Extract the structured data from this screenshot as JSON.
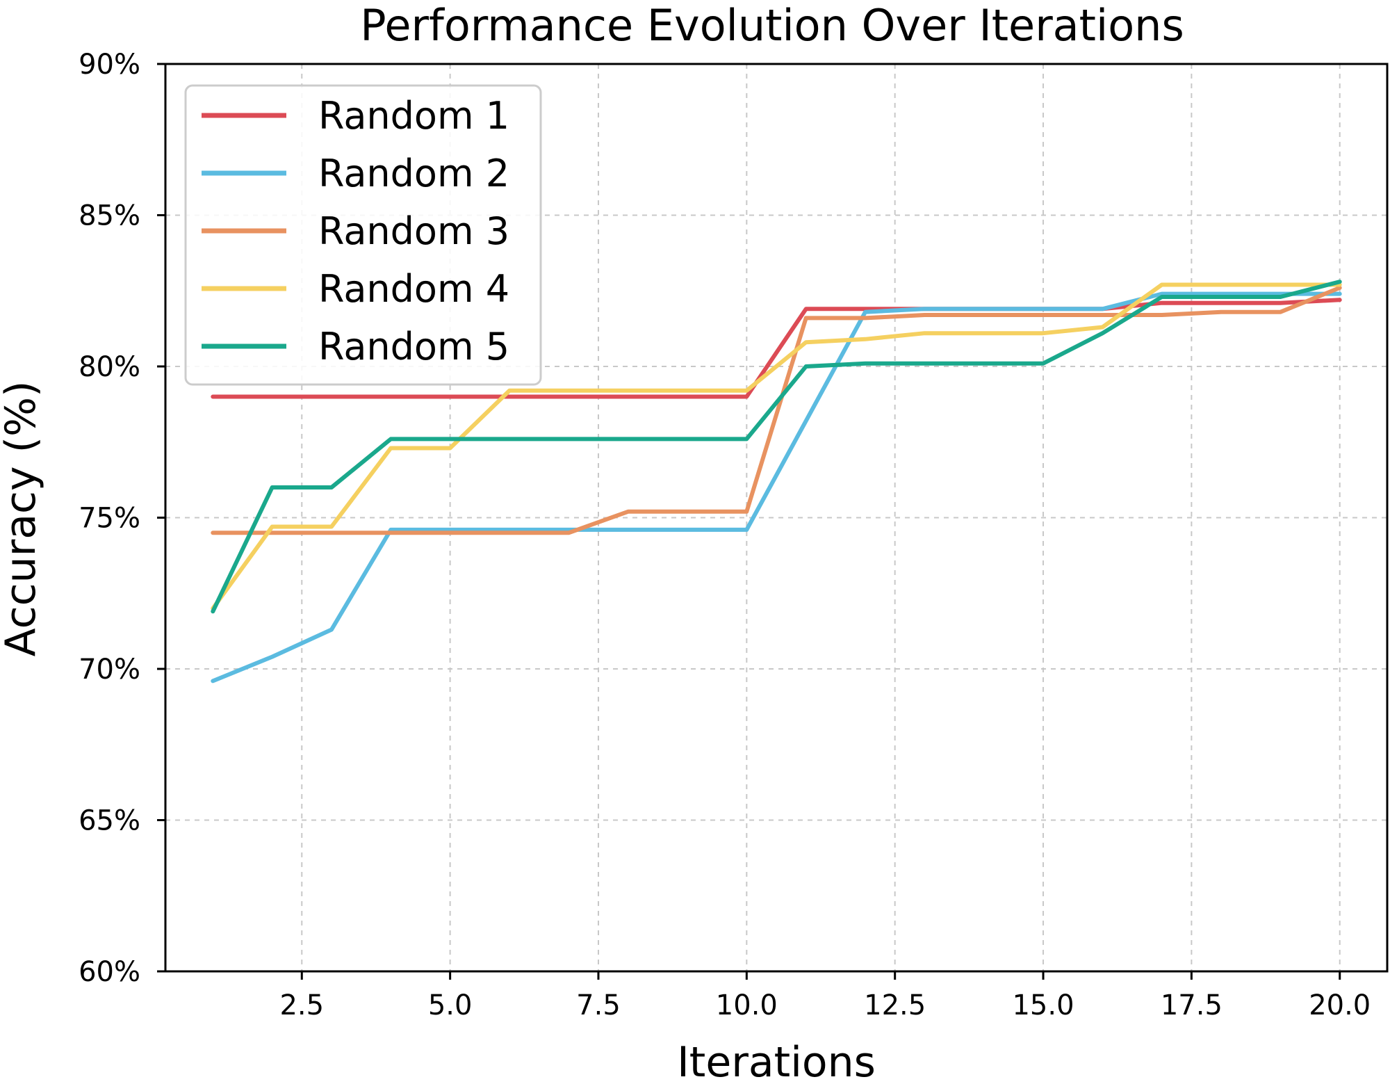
{
  "chart_data": {
    "type": "line",
    "title": "Performance Evolution Over Iterations",
    "xlabel": "Iterations",
    "ylabel": "Accuracy (%)",
    "xlim": [
      0.2,
      20.8
    ],
    "ylim": [
      60,
      90
    ],
    "x_ticks": [
      2.5,
      5.0,
      7.5,
      10.0,
      12.5,
      15.0,
      17.5,
      20.0
    ],
    "x_tick_labels": [
      "2.5",
      "5.0",
      "7.5",
      "10.0",
      "12.5",
      "15.0",
      "17.5",
      "20.0"
    ],
    "y_ticks": [
      60,
      65,
      70,
      75,
      80,
      85,
      90
    ],
    "y_tick_labels": [
      "60%",
      "65%",
      "70%",
      "75%",
      "80%",
      "85%",
      "90%"
    ],
    "grid": true,
    "legend_position": "top-left",
    "x": [
      1,
      2,
      3,
      4,
      5,
      6,
      7,
      8,
      9,
      10,
      11,
      12,
      13,
      14,
      15,
      16,
      17,
      18,
      19,
      20
    ],
    "series": [
      {
        "name": "Random 1",
        "color": "#dc4b55",
        "values": [
          79.0,
          79.0,
          79.0,
          79.0,
          79.0,
          79.0,
          79.0,
          79.0,
          79.0,
          79.0,
          81.9,
          81.9,
          81.9,
          81.9,
          81.9,
          81.9,
          82.1,
          82.1,
          82.1,
          82.2
        ]
      },
      {
        "name": "Random 2",
        "color": "#5bbbe0",
        "values": [
          69.6,
          70.4,
          71.3,
          74.6,
          74.6,
          74.6,
          74.6,
          74.6,
          74.6,
          74.6,
          78.2,
          81.8,
          81.9,
          81.9,
          81.9,
          81.9,
          82.4,
          82.4,
          82.4,
          82.4
        ]
      },
      {
        "name": "Random 3",
        "color": "#e89260",
        "values": [
          74.5,
          74.5,
          74.5,
          74.5,
          74.5,
          74.5,
          74.5,
          75.2,
          75.2,
          75.2,
          81.6,
          81.6,
          81.7,
          81.7,
          81.7,
          81.7,
          81.7,
          81.8,
          81.8,
          82.6
        ]
      },
      {
        "name": "Random 4",
        "color": "#f5d060",
        "values": [
          72.0,
          74.7,
          74.7,
          77.3,
          77.3,
          79.2,
          79.2,
          79.2,
          79.2,
          79.2,
          80.8,
          80.9,
          81.1,
          81.1,
          81.1,
          81.3,
          82.7,
          82.7,
          82.7,
          82.7
        ]
      },
      {
        "name": "Random 5",
        "color": "#1aa88c",
        "values": [
          71.9,
          76.0,
          76.0,
          77.6,
          77.6,
          77.6,
          77.6,
          77.6,
          77.6,
          77.6,
          80.0,
          80.1,
          80.1,
          80.1,
          80.1,
          81.1,
          82.3,
          82.3,
          82.3,
          82.8
        ]
      }
    ]
  }
}
